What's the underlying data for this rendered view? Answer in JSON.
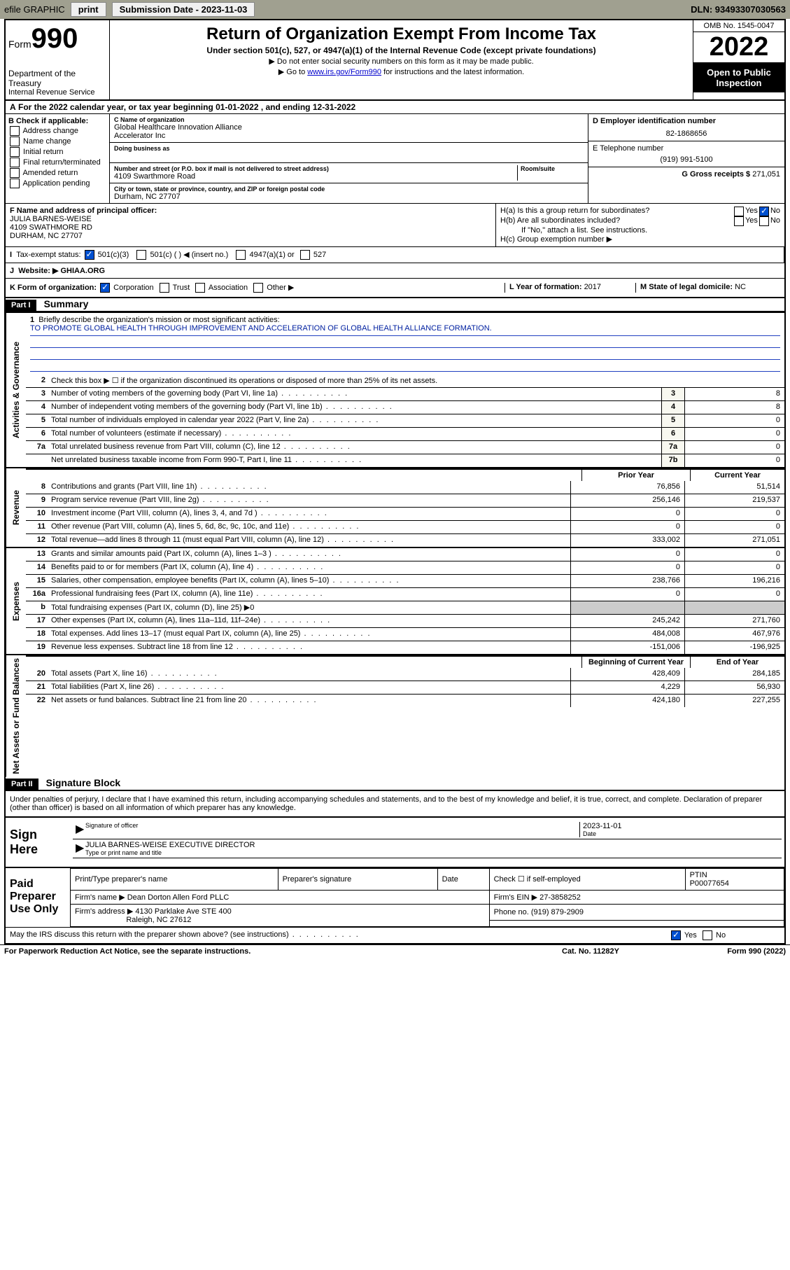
{
  "topbar": {
    "efile": "efile GRAPHIC",
    "print": "print",
    "sub_label": "Submission Date - ",
    "sub_date": "2023-11-03",
    "dln": "DLN: 93493307030563"
  },
  "header": {
    "form_word": "Form",
    "form_num": "990",
    "dept": "Department of the Treasury",
    "irs": "Internal Revenue Service",
    "title": "Return of Organization Exempt From Income Tax",
    "subtitle": "Under section 501(c), 527, or 4947(a)(1) of the Internal Revenue Code (except private foundations)",
    "note1": "▶ Do not enter social security numbers on this form as it may be made public.",
    "note2_pre": "▶ Go to ",
    "note2_link": "www.irs.gov/Form990",
    "note2_post": " for instructions and the latest information.",
    "omb": "OMB No. 1545-0047",
    "year": "2022",
    "open": "Open to Public Inspection"
  },
  "row_a": "For the 2022 calendar year, or tax year beginning 01-01-2022    , and ending 12-31-2022",
  "col_b": {
    "title": "B Check if applicable:",
    "items": [
      "Address change",
      "Name change",
      "Initial return",
      "Final return/terminated",
      "Amended return",
      "Application pending"
    ]
  },
  "col_c": {
    "name_label": "C Name of organization",
    "name1": "Global Healthcare Innovation Alliance",
    "name2": "Accelerator Inc",
    "dba_label": "Doing business as",
    "street_label": "Number and street (or P.O. box if mail is not delivered to street address)",
    "room_label": "Room/suite",
    "street": "4109 Swarthmore Road",
    "city_label": "City or town, state or province, country, and ZIP or foreign postal code",
    "city": "Durham, NC  27707"
  },
  "col_de": {
    "d_label": "D Employer identification number",
    "d_val": "82-1868656",
    "e_label": "E Telephone number",
    "e_val": "(919) 991-5100",
    "g_label": "G Gross receipts $ ",
    "g_val": "271,051"
  },
  "col_f": {
    "label": "F  Name and address of principal officer:",
    "l1": "JULIA BARNES-WEISE",
    "l2": "4109 SWATHMORE RD",
    "l3": "DURHAM, NC  27707"
  },
  "col_h": {
    "ha": "H(a)  Is this a group return for subordinates?",
    "hb": "H(b)  Are all subordinates included?",
    "hb_note": "If \"No,\" attach a list. See instructions.",
    "hc": "H(c)  Group exemption number ▶",
    "yes": "Yes",
    "no": "No"
  },
  "row_i": {
    "label": "Tax-exempt status:",
    "o1": "501(c)(3)",
    "o2": "501(c) (   ) ◀ (insert no.)",
    "o3": "4947(a)(1) or",
    "o4": "527"
  },
  "row_j": {
    "label": "Website: ▶ ",
    "val": "GHIAA.ORG"
  },
  "row_k": {
    "k_label": "K Form of organization:",
    "k_opts": [
      "Corporation",
      "Trust",
      "Association",
      "Other ▶"
    ],
    "l_label": "L Year of formation: ",
    "l_val": "2017",
    "m_label": "M State of legal domicile: ",
    "m_val": "NC"
  },
  "part1": {
    "header": "Part I",
    "title": "Summary"
  },
  "sides": {
    "gov": "Activities & Governance",
    "rev": "Revenue",
    "exp": "Expenses",
    "net": "Net Assets or Fund Balances"
  },
  "mission": {
    "q": "Briefly describe the organization's mission or most significant activities:",
    "text": "TO PROMOTE GLOBAL HEALTH THROUGH IMPROVEMENT AND ACCELERATION OF GLOBAL HEALTH ALLIANCE FORMATION."
  },
  "lines_gov": [
    {
      "n": "2",
      "d": "Check this box ▶ ☐  if the organization discontinued its operations or disposed of more than 25% of its net assets."
    },
    {
      "n": "3",
      "d": "Number of voting members of the governing body (Part VI, line 1a)",
      "box": "3",
      "v": "8"
    },
    {
      "n": "4",
      "d": "Number of independent voting members of the governing body (Part VI, line 1b)",
      "box": "4",
      "v": "8"
    },
    {
      "n": "5",
      "d": "Total number of individuals employed in calendar year 2022 (Part V, line 2a)",
      "box": "5",
      "v": "0"
    },
    {
      "n": "6",
      "d": "Total number of volunteers (estimate if necessary)",
      "box": "6",
      "v": "0"
    },
    {
      "n": "7a",
      "d": "Total unrelated business revenue from Part VIII, column (C), line 12",
      "box": "7a",
      "v": "0"
    },
    {
      "n": "",
      "d": "Net unrelated business taxable income from Form 990-T, Part I, line 11",
      "box": "7b",
      "v": "0"
    }
  ],
  "col_hdr": {
    "prior": "Prior Year",
    "curr": "Current Year"
  },
  "lines_rev": [
    {
      "n": "8",
      "d": "Contributions and grants (Part VIII, line 1h)",
      "p": "76,856",
      "c": "51,514"
    },
    {
      "n": "9",
      "d": "Program service revenue (Part VIII, line 2g)",
      "p": "256,146",
      "c": "219,537"
    },
    {
      "n": "10",
      "d": "Investment income (Part VIII, column (A), lines 3, 4, and 7d )",
      "p": "0",
      "c": "0"
    },
    {
      "n": "11",
      "d": "Other revenue (Part VIII, column (A), lines 5, 6d, 8c, 9c, 10c, and 11e)",
      "p": "0",
      "c": "0"
    },
    {
      "n": "12",
      "d": "Total revenue—add lines 8 through 11 (must equal Part VIII, column (A), line 12)",
      "p": "333,002",
      "c": "271,051"
    }
  ],
  "lines_exp": [
    {
      "n": "13",
      "d": "Grants and similar amounts paid (Part IX, column (A), lines 1–3 )",
      "p": "0",
      "c": "0"
    },
    {
      "n": "14",
      "d": "Benefits paid to or for members (Part IX, column (A), line 4)",
      "p": "0",
      "c": "0"
    },
    {
      "n": "15",
      "d": "Salaries, other compensation, employee benefits (Part IX, column (A), lines 5–10)",
      "p": "238,766",
      "c": "196,216"
    },
    {
      "n": "16a",
      "d": "Professional fundraising fees (Part IX, column (A), line 11e)",
      "p": "0",
      "c": "0"
    },
    {
      "n": "b",
      "d": "Total fundraising expenses (Part IX, column (D), line 25) ▶0",
      "p": "",
      "c": ""
    },
    {
      "n": "17",
      "d": "Other expenses (Part IX, column (A), lines 11a–11d, 11f–24e)",
      "p": "245,242",
      "c": "271,760"
    },
    {
      "n": "18",
      "d": "Total expenses. Add lines 13–17 (must equal Part IX, column (A), line 25)",
      "p": "484,008",
      "c": "467,976"
    },
    {
      "n": "19",
      "d": "Revenue less expenses. Subtract line 18 from line 12",
      "p": "-151,006",
      "c": "-196,925"
    }
  ],
  "col_hdr2": {
    "beg": "Beginning of Current Year",
    "end": "End of Year"
  },
  "lines_net": [
    {
      "n": "20",
      "d": "Total assets (Part X, line 16)",
      "p": "428,409",
      "c": "284,185"
    },
    {
      "n": "21",
      "d": "Total liabilities (Part X, line 26)",
      "p": "4,229",
      "c": "56,930"
    },
    {
      "n": "22",
      "d": "Net assets or fund balances. Subtract line 21 from line 20",
      "p": "424,180",
      "c": "227,255"
    }
  ],
  "part2": {
    "header": "Part II",
    "title": "Signature Block"
  },
  "declaration": "Under penalties of perjury, I declare that I have examined this return, including accompanying schedules and statements, and to the best of my knowledge and belief, it is true, correct, and complete. Declaration of preparer (other than officer) is based on all information of which preparer has any knowledge.",
  "sign": {
    "label": "Sign Here",
    "sig_of": "Signature of officer",
    "date_label": "Date",
    "date_val": "2023-11-01",
    "name": "JULIA BARNES-WEISE  EXECUTIVE DIRECTOR",
    "name_label": "Type or print name and title"
  },
  "prep": {
    "label": "Paid Preparer Use Only",
    "h1": "Print/Type preparer's name",
    "h2": "Preparer's signature",
    "h3": "Date",
    "h4_pre": "Check ☐ if self-employed",
    "h5": "PTIN",
    "ptin": "P00077654",
    "firm_name_l": "Firm's name    ▶ ",
    "firm_name": "Dean Dorton Allen Ford PLLC",
    "firm_ein_l": "Firm's EIN ▶ ",
    "firm_ein": "27-3858252",
    "firm_addr_l": "Firm's address ▶ ",
    "firm_addr1": "4130 Parklake Ave STE 400",
    "firm_addr2": "Raleigh, NC  27612",
    "phone_l": "Phone no. ",
    "phone": "(919) 879-2909"
  },
  "may_irs": "May the IRS discuss this return with the preparer shown above? (see instructions)",
  "footer": {
    "l": "For Paperwork Reduction Act Notice, see the separate instructions.",
    "m": "Cat. No. 11282Y",
    "r": "Form 990 (2022)"
  }
}
